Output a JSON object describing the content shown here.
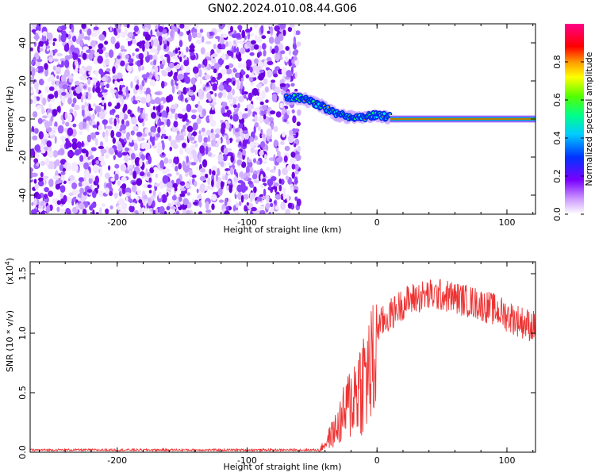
{
  "title": "GN02.2024.010.08.44.G06",
  "chart_data": [
    {
      "type": "heatmap",
      "xlabel": "Height of straight line (km)",
      "ylabel": "Frequency (Hz)",
      "xlim": [
        -267,
        122
      ],
      "ylim": [
        -50,
        50
      ],
      "x_ticks": [
        -200,
        -100,
        0,
        100
      ],
      "y_ticks": [
        -40,
        -20,
        0,
        20,
        40
      ],
      "noise_region_x": [
        -267,
        -60
      ],
      "signal_trace": {
        "x": [
          -70,
          -60,
          -50,
          -40,
          -30,
          -20,
          -10,
          0,
          10,
          122
        ],
        "y": [
          11,
          11,
          9,
          6,
          2,
          1,
          1,
          2,
          1,
          0
        ]
      },
      "colorbar": {
        "label": "Normalized spectral amplitude",
        "range": [
          0,
          1
        ],
        "ticks": [
          0.0,
          0.2,
          0.4,
          0.6,
          0.8
        ],
        "tick_labels": [
          "0.0",
          "0.2",
          "0.4",
          "0.6",
          "0.8"
        ]
      }
    },
    {
      "type": "line",
      "xlabel": "Height of straight line (km)",
      "ylabel": "SNR (10 * v/v)",
      "y_multiplier": "(x10",
      "y_multiplier_exp": "4",
      "xlim": [
        -267,
        122
      ],
      "ylim": [
        0,
        1.6
      ],
      "x_ticks": [
        -200,
        -100,
        0,
        100
      ],
      "y_ticks": [
        0.0,
        0.5,
        1.0,
        1.5
      ],
      "y_tick_labels": [
        "0.0",
        "0.5",
        "1.0",
        "1.5"
      ],
      "series": [
        {
          "color": "#ee3333",
          "envelope": {
            "x": [
              -267,
              -45,
              -40,
              -35,
              -30,
              -25,
              -20,
              -15,
              -10,
              -5,
              0,
              10,
              20,
              30,
              40,
              50,
              60,
              70,
              80,
              90,
              100,
              110,
              122
            ],
            "y": [
              0.01,
              0.01,
              0.1,
              0.2,
              0.3,
              0.45,
              0.6,
              0.75,
              0.85,
              0.95,
              1.05,
              1.15,
              1.25,
              1.3,
              1.32,
              1.32,
              1.3,
              1.27,
              1.24,
              1.2,
              1.15,
              1.1,
              1.05
            ]
          }
        }
      ]
    }
  ]
}
